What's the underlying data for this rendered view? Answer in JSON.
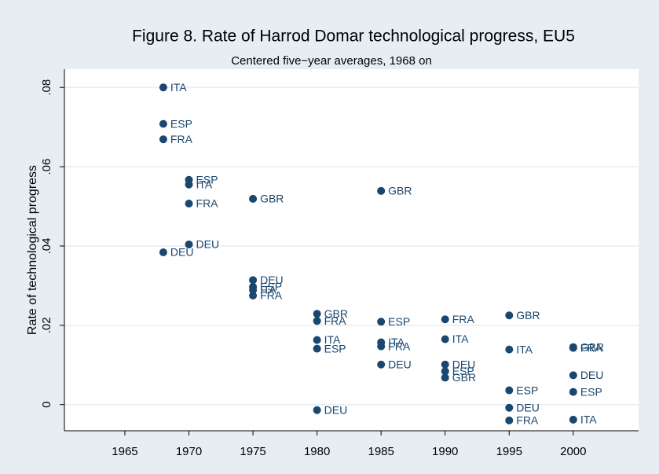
{
  "chart_data": {
    "type": "scatter",
    "title": "Figure 8.  Rate of Harrod Domar technological progress, EU5",
    "subtitle": "Centered five−year averages, 1968 on",
    "y_label": "Rate of technological progress",
    "color": "#1a476f",
    "x": [
      1968,
      1968,
      1968,
      1968,
      1970,
      1970,
      1970,
      1970,
      1975,
      1975,
      1975,
      1975,
      1975,
      1980,
      1980,
      1980,
      1980,
      1980,
      1985,
      1985,
      1985,
      1985,
      1985,
      1990,
      1990,
      1990,
      1990,
      1990,
      1995,
      1995,
      1995,
      1995,
      1995,
      2000,
      2000,
      2000,
      2000,
      2000
    ],
    "values": [
      0.08,
      0.0708,
      0.0669,
      0.0384,
      0.0567,
      0.0555,
      0.0507,
      0.0404,
      0.0519,
      0.0314,
      0.0297,
      0.0289,
      0.0275,
      0.0229,
      0.0211,
      0.0163,
      0.0141,
      -0.0014,
      0.0539,
      0.0209,
      0.0157,
      0.0147,
      0.0101,
      0.0215,
      0.0165,
      0.0101,
      0.0084,
      0.0068,
      0.0225,
      0.0139,
      0.0036,
      -0.0008,
      -0.004,
      0.0145,
      0.0143,
      0.0074,
      0.0032,
      -0.0038
    ],
    "point_labels": [
      "ITA",
      "ESP",
      "FRA",
      "DEU",
      "ESP",
      "ITA",
      "FRA",
      "DEU",
      "GBR",
      "DEU",
      "ESP",
      "ITA",
      "FRA",
      "GBR",
      "FRA",
      "ITA",
      "ESP",
      "DEU",
      "GBR",
      "ESP",
      "ITA",
      "FRA",
      "DEU",
      "FRA",
      "ITA",
      "DEU",
      "ESP",
      "GBR",
      "GBR",
      "ITA",
      "ESP",
      "DEU",
      "FRA",
      "GBR",
      "FRA",
      "DEU",
      "ESP",
      "ITA"
    ],
    "xlim": [
      1960.28,
      2005.1
    ],
    "xticks": [
      1965,
      1970,
      1975,
      1980,
      1985,
      1990,
      1995,
      2000
    ],
    "ylim": [
      -0.0066,
      0.0846
    ],
    "yticks": [
      0,
      {
        "value": 0.02,
        "label": ".02"
      },
      {
        "value": 0.04,
        "label": ".04"
      },
      {
        "value": 0.06,
        "label": ".06"
      },
      {
        "value": 0.08,
        "label": ".08"
      }
    ],
    "grid": true
  }
}
